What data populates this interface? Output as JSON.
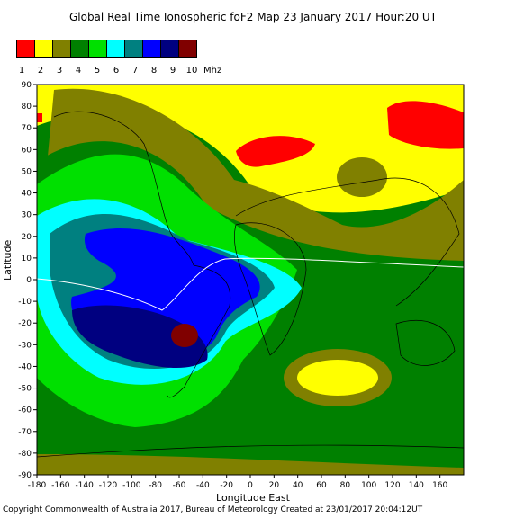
{
  "title": "Global Real Time Ionospheric foF2 Map   23 January 2017 Hour:20 UT",
  "legend": {
    "colors": [
      "#ff0000",
      "#ffff00",
      "#808000",
      "#008000",
      "#00e000",
      "#00ffff",
      "#008080",
      "#0000ff",
      "#000080",
      "#800000"
    ],
    "labels": [
      "1",
      "2",
      "3",
      "4",
      "5",
      "6",
      "7",
      "8",
      "9",
      "10"
    ],
    "unit": "Mhz"
  },
  "footer": "Copyright Commonwealth of Australia 2017, Bureau of Meteorology    Created at 23/01/2017 20:04:12UT",
  "chart_data": {
    "type": "heatmap",
    "title": "Global Real Time Ionospheric foF2 Map   23 January 2017 Hour:20 UT",
    "xlabel": "Longitude East",
    "ylabel": "Latitude",
    "xlim": [
      -180,
      180
    ],
    "ylim": [
      -90,
      90
    ],
    "xticks": [
      -180,
      -160,
      -140,
      -120,
      -100,
      -80,
      -60,
      -40,
      -20,
      0,
      20,
      40,
      60,
      80,
      100,
      120,
      140,
      160
    ],
    "yticks": [
      90,
      80,
      70,
      60,
      50,
      40,
      30,
      20,
      10,
      0,
      -10,
      -20,
      -30,
      -40,
      -50,
      -60,
      -70,
      -80,
      -90
    ],
    "xtick_labels": [
      "-180",
      "-160",
      "-140",
      "-120",
      "-100",
      "-80",
      "-60",
      "-40",
      "-20",
      "0",
      "20",
      "40",
      "60",
      "80",
      "100",
      "120",
      "140",
      "160"
    ],
    "ytick_labels": [
      "90",
      "80",
      "70",
      "60",
      "50",
      "40",
      "30",
      "20",
      "10",
      "0",
      "-10",
      "-20",
      "-30",
      "-40",
      "-50",
      "-60",
      "-70",
      "-80",
      "-90"
    ],
    "colorbar_unit": "Mhz",
    "colorbar_levels": [
      "1",
      "2",
      "3",
      "4",
      "5",
      "6",
      "7",
      "8",
      "9",
      "10"
    ],
    "regions": [
      {
        "level": 2,
        "desc": "high northern latitudes and Eurasia / North Africa"
      },
      {
        "level": 1,
        "desc": "patches over Greenland/Scandinavia and NE Asia"
      },
      {
        "level": 7,
        "desc": "core over Americas and S. Atlantic"
      },
      {
        "level": 8,
        "desc": "inner core around South America"
      },
      {
        "level": 9,
        "desc": "small patch near 60W, 30S"
      }
    ]
  }
}
